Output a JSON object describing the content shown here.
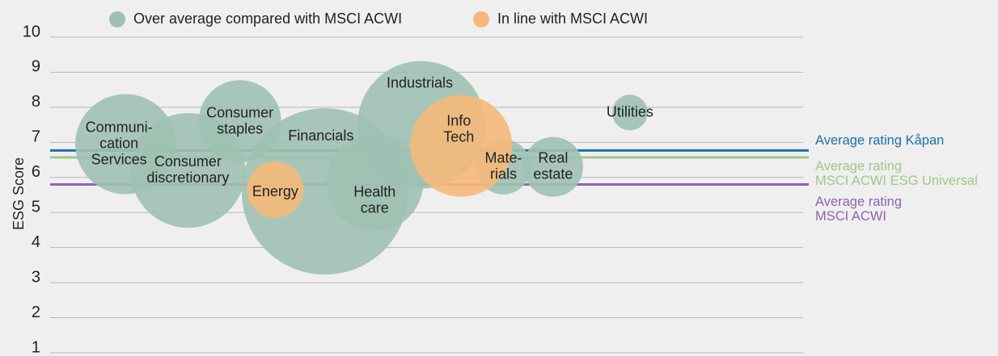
{
  "chart_data": {
    "type": "bubble",
    "ylabel": "ESG Score",
    "xlim": [
      0,
      100
    ],
    "ylim": [
      1,
      10
    ],
    "yticks": [
      1,
      2,
      3,
      4,
      5,
      6,
      7,
      8,
      9,
      10
    ],
    "grid": true,
    "legend": "top",
    "series": [
      {
        "name": "Over average compared with MSCI ACWI",
        "color": "#9fc1b2",
        "labels": [
          [
            "Communi-",
            "cation",
            "Services"
          ],
          [
            "Consumer",
            "discretionary"
          ],
          [
            "Consumer",
            "staples"
          ],
          [
            "Financials"
          ],
          [
            "Health",
            "care"
          ],
          [
            "Industrials"
          ],
          [
            "Mate-",
            "rials"
          ],
          [
            "Real",
            "estate"
          ],
          [
            "Utilities"
          ]
        ],
        "x": [
          10.0,
          18.3,
          25.2,
          36.5,
          43.1,
          49.3,
          60.2,
          66.8,
          77.0
        ],
        "values": [
          6.95,
          6.2,
          7.6,
          5.6,
          5.85,
          7.5,
          6.3,
          6.3,
          7.85
        ],
        "sizes": [
          62,
          71,
          51,
          103,
          60,
          79,
          34,
          37,
          22
        ]
      },
      {
        "name": "In line with MSCI ACWI",
        "color": "#f5b87a",
        "labels": [
          [
            "Energy"
          ],
          [
            "Info",
            "Tech"
          ]
        ],
        "x": [
          29.9,
          54.6
        ],
        "values": [
          5.65,
          6.9
        ],
        "sizes": [
          35,
          63
        ]
      }
    ],
    "reference_lines": [
      {
        "label": [
          "Average rating Kåpan"
        ],
        "value": 6.77,
        "color": "#1f6fa8"
      },
      {
        "label": [
          "Average rating",
          "MSCI ACWI ESG Universal"
        ],
        "value": 6.57,
        "color": "#a3c586"
      },
      {
        "label": [
          "Average rating",
          "MSCI ACWI"
        ],
        "value": 5.8,
        "color": "#8e63b3"
      }
    ]
  }
}
